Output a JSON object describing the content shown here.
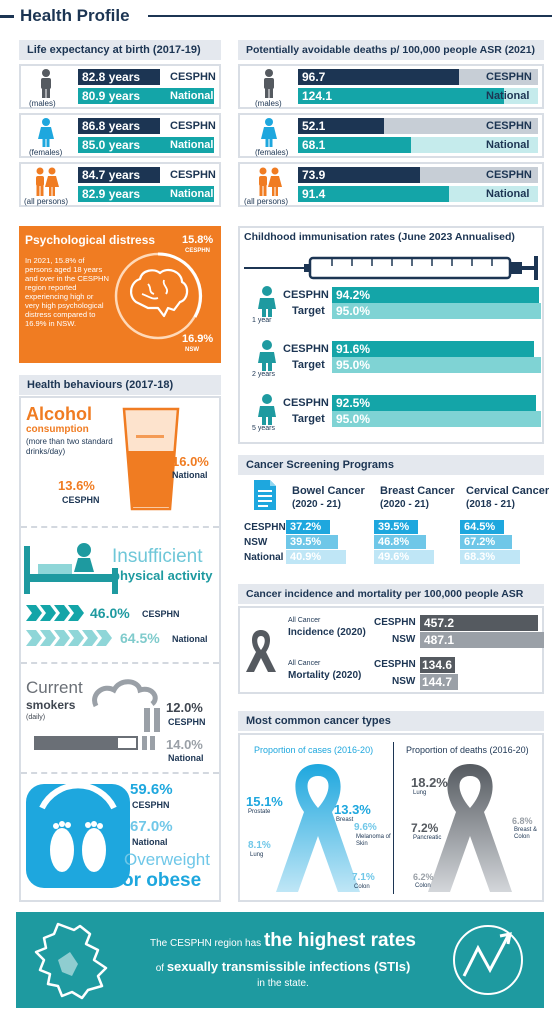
{
  "title": "Health Profile",
  "life_expectancy": {
    "header": "Life expectancy at birth (2017-19)",
    "rows": [
      {
        "label": "(males)",
        "cesphn": "82.8 years",
        "national": "80.9 years"
      },
      {
        "label": "(females)",
        "cesphn": "86.8 years",
        "national": "85.0 years"
      },
      {
        "label": "(all persons)",
        "cesphn": "84.7 years",
        "national": "82.9 years"
      }
    ],
    "cesphn_label": "CESPHN",
    "national_label": "National"
  },
  "avoidable_deaths": {
    "header": "Potentially avoidable deaths p/ 100,000 people ASR (2021)",
    "rows": [
      {
        "label": "(males)",
        "cesphn": "96.7",
        "national": "124.1",
        "cesphn_frac": 0.67,
        "national_frac": 0.86
      },
      {
        "label": "(females)",
        "cesphn": "52.1",
        "national": "68.1",
        "cesphn_frac": 0.36,
        "national_frac": 0.47
      },
      {
        "label": "(all persons)",
        "cesphn": "73.9",
        "national": "91.4",
        "cesphn_frac": 0.51,
        "national_frac": 0.63
      }
    ],
    "cesphn_label": "CESPHN",
    "national_label": "National"
  },
  "psych": {
    "title": "Psychological distress",
    "text": "In 2021, 15.8% of persons aged 18 years and over in the CESPHN region reported experiencing high or very high psychological distress compared to 16.9% in NSW.",
    "cesphn_value": "15.8%",
    "cesphn_label": "CESPHN",
    "nsw_value": "16.9%",
    "nsw_label": "NSW"
  },
  "immunisation": {
    "header": "Childhood immunisation rates (June 2023 Annualised)",
    "groups": [
      {
        "age": "1 year",
        "cesphn": "94.2%",
        "target": "95.0%",
        "cesphn_frac": 0.942,
        "target_frac": 0.95
      },
      {
        "age": "2 years",
        "cesphn": "91.6%",
        "target": "95.0%",
        "cesphn_frac": 0.916,
        "target_frac": 0.95
      },
      {
        "age": "5 years",
        "cesphn": "92.5%",
        "target": "95.0%",
        "cesphn_frac": 0.925,
        "target_frac": 0.95
      }
    ],
    "cesphn_label": "CESPHN",
    "target_label": "Target"
  },
  "behaviours": {
    "header": "Health behaviours (2017-18)",
    "alcohol": {
      "title": "Alcohol",
      "subtitle": "consumption",
      "note": "(more than two standard drinks/day)",
      "cesphn_value": "13.6%",
      "cesphn_label": "CESPHN",
      "national_value": "16.0%",
      "national_label": "National"
    },
    "activity": {
      "title1": "Insufficient",
      "title2": "physical activity",
      "cesphn_value": "46.0%",
      "cesphn_label": "CESPHN",
      "national_value": "64.5%",
      "national_label": "National"
    },
    "smokers": {
      "title1": "Current",
      "title2": "smokers",
      "note": "(daily)",
      "cesphn_value": "12.0%",
      "cesphn_label": "CESPHN",
      "national_value": "14.0%",
      "national_label": "National"
    },
    "overweight": {
      "cesphn_value": "59.6%",
      "cesphn_label": "CESPHN",
      "national_value": "67.0%",
      "national_label": "National",
      "title1": "Overweight",
      "title2": "or obese"
    }
  },
  "screening": {
    "header": "Cancer Screening Programs",
    "programs": [
      {
        "name": "Bowel Cancer",
        "years": "(2020 - 21)",
        "cesphn": "37.2%",
        "nsw": "39.5%",
        "national": "40.9%"
      },
      {
        "name": "Breast Cancer",
        "years": "(2020 - 21)",
        "cesphn": "39.5%",
        "nsw": "46.8%",
        "national": "49.6%"
      },
      {
        "name": "Cervical Cancer",
        "years": "(2018 - 21)",
        "cesphn": "64.5%",
        "nsw": "67.2%",
        "national": "68.3%"
      }
    ],
    "row_labels": [
      "CESPHN",
      "NSW",
      "National"
    ]
  },
  "incidence": {
    "header": "Cancer incidence and mortality per 100,000 people ASR",
    "incidence_label1": "All Cancer",
    "incidence_label2": "Incidence (2020)",
    "mortality_label1": "All Cancer",
    "mortality_label2": "Mortality (2020)",
    "incidence_cesphn": "457.2",
    "incidence_nsw": "487.1",
    "mortality_cesphn": "134.6",
    "mortality_nsw": "144.7",
    "cesphn_label": "CESPHN",
    "nsw_label": "NSW"
  },
  "common_types": {
    "header": "Most common cancer types",
    "cases_title": "Proportion of cases (2016-20)",
    "deaths_title": "Proportion of deaths (2016-20)",
    "cases": [
      {
        "value": "15.1%",
        "label": "Prostate"
      },
      {
        "value": "13.3%",
        "label": "Breast"
      },
      {
        "value": "9.6%",
        "label": "Melanoma of Skin"
      },
      {
        "value": "8.1%",
        "label": "Lung"
      },
      {
        "value": "7.1%",
        "label": "Colon"
      }
    ],
    "deaths": [
      {
        "value": "18.2%",
        "label": "Lung"
      },
      {
        "value": "7.2%",
        "label": "Pancreatic"
      },
      {
        "value": "6.8%",
        "label": "Breast & Colon"
      },
      {
        "value": "6.2%",
        "label": "Colon"
      }
    ]
  },
  "banner": {
    "line1a": "The CESPHN region has ",
    "line1b": "the highest rates",
    "line2a": "of ",
    "line2b": "sexually transmissible infections (STIs)",
    "line3": "in the state."
  }
}
